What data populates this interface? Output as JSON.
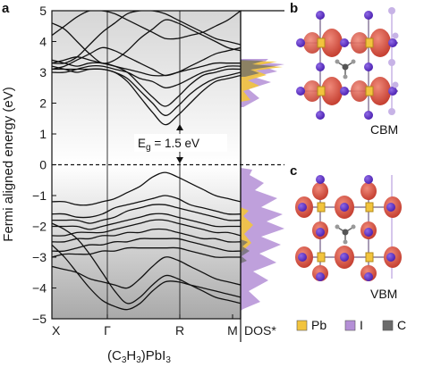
{
  "panels": {
    "a": "a",
    "b": "b",
    "c": "c"
  },
  "chart_data": {
    "type": "line",
    "ylabel": "Fermi aligned energy (eV)",
    "xlabel": "(C3H3)PbI3",
    "xlabel_parts": {
      "main": "(C",
      "s1": "3",
      "mid": "H",
      "s2": "3",
      "tail": ")PbI",
      "s3": "3"
    },
    "ylim": [
      -5,
      5
    ],
    "yticks": [
      5,
      4,
      3,
      2,
      1,
      0,
      -1,
      -2,
      -3,
      -4,
      -5
    ],
    "ytick_labels": [
      "5",
      "4",
      "3",
      "2",
      "1",
      "0",
      "−1",
      "−2",
      "−3",
      "−4",
      "−5"
    ],
    "kpoint_labels": [
      "X",
      "Γ",
      "R",
      "M"
    ],
    "dos_label": "DOS*",
    "fermi_level": 0,
    "annotation": {
      "main": "E",
      "sub": "g",
      "rest": " = 1.5 eV",
      "gap_eV": 1.5,
      "at_kpoint": "R"
    },
    "bands": [
      [
        4.2,
        4.5,
        4.8,
        5.0,
        5.0,
        4.9,
        4.7,
        4.5,
        4.3,
        4.1,
        4.1,
        4.2,
        4.3,
        4.5,
        4.7,
        5.0
      ],
      [
        4.6,
        4.4,
        4.0,
        3.6,
        3.3,
        3.4,
        3.7,
        4.1,
        4.4,
        4.7,
        4.6,
        4.4,
        4.2,
        4.0,
        3.8,
        3.7
      ],
      [
        3.3,
        3.3,
        3.5,
        3.9,
        4.3,
        4.6,
        4.9,
        5.0,
        5.0,
        4.9,
        4.7,
        4.5,
        4.3,
        4.1,
        4.0,
        3.9
      ],
      [
        3.1,
        3.2,
        3.4,
        3.6,
        3.8,
        3.7,
        3.5,
        3.3,
        3.1,
        2.9,
        3.0,
        3.2,
        3.4,
        3.6,
        3.7,
        3.8
      ],
      [
        3.0,
        3.0,
        3.1,
        3.2,
        3.2,
        3.1,
        3.0,
        2.8,
        2.7,
        2.5,
        2.6,
        2.8,
        3.0,
        3.1,
        3.2,
        3.2
      ],
      [
        3.4,
        3.3,
        3.2,
        3.3,
        3.3,
        3.2,
        3.0,
        2.6,
        2.2,
        1.9,
        2.2,
        2.6,
        2.9,
        3.0,
        3.1,
        3.1
      ],
      [
        3.2,
        3.1,
        3.0,
        3.1,
        3.1,
        3.0,
        2.8,
        2.4,
        2.0,
        1.6,
        1.9,
        2.3,
        2.6,
        2.8,
        2.9,
        3.0
      ],
      [
        3.1,
        3.1,
        3.1,
        3.1,
        3.1,
        3.0,
        2.7,
        2.2,
        1.7,
        1.3,
        1.6,
        2.0,
        2.4,
        2.7,
        2.8,
        2.9
      ],
      [
        3.3,
        3.4,
        3.5,
        3.4,
        3.3,
        3.2,
        3.1,
        3.0,
        2.9,
        2.9,
        3.0,
        3.1,
        3.2,
        3.3,
        3.3,
        3.3
      ],
      [
        -1.2,
        -1.2,
        -1.3,
        -1.3,
        -1.2,
        -1.1,
        -0.9,
        -0.7,
        -0.4,
        -0.25,
        -0.4,
        -0.6,
        -0.8,
        -1.0,
        -1.1,
        -1.2
      ],
      [
        -1.6,
        -1.6,
        -1.7,
        -1.7,
        -1.6,
        -1.4,
        -1.3,
        -1.2,
        -1.1,
        -1.0,
        -1.1,
        -1.3,
        -1.4,
        -1.5,
        -1.6,
        -1.6
      ],
      [
        -1.8,
        -1.8,
        -1.8,
        -1.9,
        -1.8,
        -1.7,
        -1.5,
        -1.4,
        -1.3,
        -1.3,
        -1.4,
        -1.5,
        -1.6,
        -1.7,
        -1.8,
        -1.8
      ],
      [
        -2.0,
        -2.0,
        -2.0,
        -2.1,
        -2.0,
        -1.9,
        -1.8,
        -1.7,
        -1.6,
        -1.6,
        -1.7,
        -1.8,
        -1.9,
        -2.0,
        -2.0,
        -2.0
      ],
      [
        -2.3,
        -2.3,
        -2.2,
        -2.2,
        -2.2,
        -2.1,
        -2.0,
        -1.9,
        -1.8,
        -1.8,
        -1.9,
        -2.0,
        -2.1,
        -2.2,
        -2.2,
        -2.3
      ],
      [
        -2.5,
        -2.5,
        -2.4,
        -2.4,
        -2.3,
        -2.3,
        -2.2,
        -2.2,
        -2.1,
        -2.1,
        -2.2,
        -2.3,
        -2.4,
        -2.4,
        -2.5,
        -2.5
      ],
      [
        -2.8,
        -2.8,
        -2.7,
        -2.6,
        -2.6,
        -2.5,
        -2.5,
        -2.4,
        -2.4,
        -2.4,
        -2.4,
        -2.5,
        -2.6,
        -2.7,
        -2.8,
        -2.8
      ],
      [
        -3.0,
        -2.9,
        -2.9,
        -2.9,
        -2.8,
        -2.8,
        -2.7,
        -2.7,
        -2.7,
        -2.7,
        -2.7,
        -2.8,
        -2.9,
        -3.0,
        -3.0,
        -3.0
      ],
      [
        -1.9,
        -2.1,
        -2.4,
        -2.9,
        -3.5,
        -4.1,
        -4.5,
        -4.3,
        -3.9,
        -3.6,
        -3.7,
        -3.9,
        -4.1,
        -4.3,
        -4.4,
        -4.5
      ],
      [
        -2.6,
        -3.0,
        -3.5,
        -4.0,
        -4.4,
        -4.6,
        -4.7,
        -4.5,
        -4.1,
        -3.8,
        -3.8,
        -3.9,
        -4.0,
        -4.1,
        -4.2,
        -4.3
      ],
      [
        -3.3,
        -3.4,
        -3.5,
        -3.7,
        -3.8,
        -3.9,
        -4.0,
        -3.7,
        -3.3,
        -3.0,
        -3.1,
        -3.3,
        -3.5,
        -3.7,
        -3.8,
        -3.9
      ]
    ],
    "legend": [
      {
        "label": "Pb",
        "color": "#f2c43d"
      },
      {
        "label": "I",
        "color": "#b48fd6"
      },
      {
        "label": "C",
        "color": "#6b6b6b"
      }
    ],
    "structure_labels": {
      "b": "CBM",
      "c": "VBM"
    }
  }
}
